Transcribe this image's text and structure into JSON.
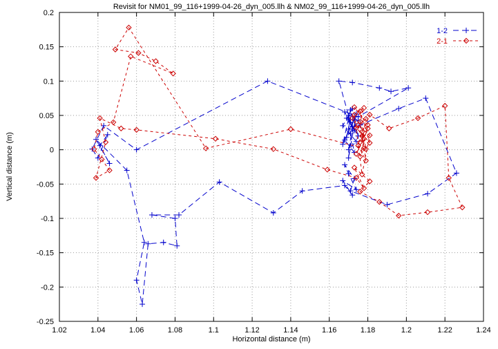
{
  "chart_data": {
    "type": "scatter",
    "title": "Revisit for NM01_99_116+1999-04-26_dyn_005.llh & NM02_99_116+1999-04-26_dyn_005.llh",
    "xlabel": "Horizontal distance (m)",
    "ylabel": "Vertical distance (m)",
    "xlim": [
      1.02,
      1.24
    ],
    "ylim": [
      -0.25,
      0.2
    ],
    "x_tick_values": [
      1.02,
      1.04,
      1.06,
      1.08,
      1.1,
      1.12,
      1.14,
      1.16,
      1.18,
      1.2,
      1.22,
      1.24
    ],
    "x_tick_labels": [
      "1.02",
      "1.04",
      "1.06",
      "1.08",
      "1.1",
      "1.12",
      "1.14",
      "1.16",
      "1.18",
      "1.2",
      "1.22",
      "1.24"
    ],
    "y_tick_values": [
      -0.25,
      -0.2,
      -0.15,
      -0.1,
      -0.05,
      0,
      0.05,
      0.1,
      0.15,
      0.2
    ],
    "y_tick_labels": [
      "-0.25",
      "-0.2",
      "-0.15",
      "-0.1",
      "-0.05",
      "0",
      "0.05",
      "0.1",
      "0.15",
      "0.2"
    ],
    "grid": true,
    "grid_color": "#9a9a9a",
    "background": "#ffffff",
    "border_color": "#000000",
    "legend": {
      "position": "top-right-inside"
    },
    "series": [
      {
        "name": "1-2",
        "color": "#0000cc",
        "marker": "plus",
        "linestyle": "dashed",
        "points": [
          [
            1.171,
            0.04
          ],
          [
            1.168,
            0.055
          ],
          [
            1.173,
            0.028
          ],
          [
            1.17,
            0.05
          ],
          [
            1.175,
            0.042
          ],
          [
            1.169,
            0.018
          ],
          [
            1.172,
            0.06
          ],
          [
            1.167,
            0.035
          ],
          [
            1.174,
            0.012
          ],
          [
            1.17,
            0.0
          ],
          [
            1.172,
            0.03
          ],
          [
            1.165,
            0.1
          ],
          [
            1.172,
            0.098
          ],
          [
            1.186,
            0.09
          ],
          [
            1.192,
            0.085
          ],
          [
            1.201,
            0.09
          ],
          [
            1.175,
            0.048
          ],
          [
            1.128,
            0.1
          ],
          [
            1.06,
            0.0
          ],
          [
            1.043,
            0.035
          ],
          [
            1.037,
            0.001
          ],
          [
            1.04,
            -0.012
          ],
          [
            1.045,
            0.022
          ],
          [
            1.041,
            0.006
          ],
          [
            1.046,
            -0.02
          ],
          [
            1.039,
            0.015
          ],
          [
            1.055,
            -0.03
          ],
          [
            1.064,
            -0.135
          ],
          [
            1.06,
            -0.19
          ],
          [
            1.063,
            -0.225
          ],
          [
            1.066,
            -0.137
          ],
          [
            1.074,
            -0.135
          ],
          [
            1.081,
            -0.14
          ],
          [
            1.08,
            -0.1
          ],
          [
            1.068,
            -0.095
          ],
          [
            1.082,
            -0.095
          ],
          [
            1.103,
            -0.047
          ],
          [
            1.131,
            -0.092
          ],
          [
            1.146,
            -0.06
          ],
          [
            1.168,
            -0.052
          ],
          [
            1.172,
            -0.066
          ],
          [
            1.167,
            -0.045
          ],
          [
            1.174,
            -0.058
          ],
          [
            1.17,
            -0.035
          ],
          [
            1.168,
            -0.022
          ],
          [
            1.173,
            -0.042
          ],
          [
            1.171,
            -0.06
          ],
          [
            1.19,
            -0.08
          ],
          [
            1.211,
            -0.064
          ],
          [
            1.226,
            -0.034
          ],
          [
            1.21,
            0.075
          ],
          [
            1.196,
            0.06
          ],
          [
            1.176,
            0.036
          ],
          [
            1.171,
            0.024
          ],
          [
            1.173,
            -0.004
          ],
          [
            1.168,
            0.014
          ],
          [
            1.174,
            0.052
          ],
          [
            1.17,
            -0.012
          ],
          [
            1.172,
            0.034
          ],
          [
            1.169,
            0.046
          ],
          [
            1.175,
            0.02
          ],
          [
            1.171,
            0.058
          ],
          [
            1.167,
            0.008
          ],
          [
            1.173,
            0.044
          ],
          [
            1.17,
            0.03
          ]
        ]
      },
      {
        "name": "2-1",
        "color": "#cc0000",
        "marker": "diamond",
        "linestyle": "dashed",
        "points": [
          [
            1.177,
            0.02
          ],
          [
            1.179,
            0.045
          ],
          [
            1.174,
            0.032
          ],
          [
            1.181,
            0.01
          ],
          [
            1.176,
            0.056
          ],
          [
            1.173,
            0.062
          ],
          [
            1.18,
            0.036
          ],
          [
            1.176,
            -0.01
          ],
          [
            1.178,
            0.002
          ],
          [
            1.14,
            0.03
          ],
          [
            1.096,
            0.002
          ],
          [
            1.056,
            0.178
          ],
          [
            1.049,
            0.146
          ],
          [
            1.061,
            0.141
          ],
          [
            1.07,
            0.129
          ],
          [
            1.079,
            0.111
          ],
          [
            1.057,
            0.136
          ],
          [
            1.048,
            0.04
          ],
          [
            1.04,
            0.026
          ],
          [
            1.038,
            0.001
          ],
          [
            1.042,
            -0.014
          ],
          [
            1.046,
            -0.03
          ],
          [
            1.039,
            -0.041
          ],
          [
            1.044,
            0.011
          ],
          [
            1.041,
            0.046
          ],
          [
            1.052,
            0.031
          ],
          [
            1.06,
            0.029
          ],
          [
            1.101,
            0.016
          ],
          [
            1.131,
            0.001
          ],
          [
            1.159,
            -0.029
          ],
          [
            1.174,
            -0.041
          ],
          [
            1.178,
            -0.056
          ],
          [
            1.173,
            -0.026
          ],
          [
            1.181,
            -0.046
          ],
          [
            1.176,
            -0.061
          ],
          [
            1.186,
            -0.076
          ],
          [
            1.196,
            -0.096
          ],
          [
            1.211,
            -0.091
          ],
          [
            1.229,
            -0.084
          ],
          [
            1.222,
            -0.041
          ],
          [
            1.22,
            0.064
          ],
          [
            1.206,
            0.046
          ],
          [
            1.191,
            0.031
          ],
          [
            1.181,
            0.051
          ],
          [
            1.177,
            0.026
          ],
          [
            1.175,
            0.006
          ],
          [
            1.179,
            -0.016
          ],
          [
            1.176,
            0.041
          ],
          [
            1.178,
            0.061
          ],
          [
            1.173,
            0.051
          ],
          [
            1.177,
            -0.036
          ],
          [
            1.181,
            0.021
          ],
          [
            1.175,
            0.036
          ],
          [
            1.179,
            0.001
          ],
          [
            1.176,
            0.056
          ],
          [
            1.172,
            0.046
          ],
          [
            1.178,
            0.016
          ],
          [
            1.174,
            -0.006
          ],
          [
            1.18,
            0.031
          ],
          [
            1.176,
            0.011
          ]
        ]
      }
    ]
  }
}
